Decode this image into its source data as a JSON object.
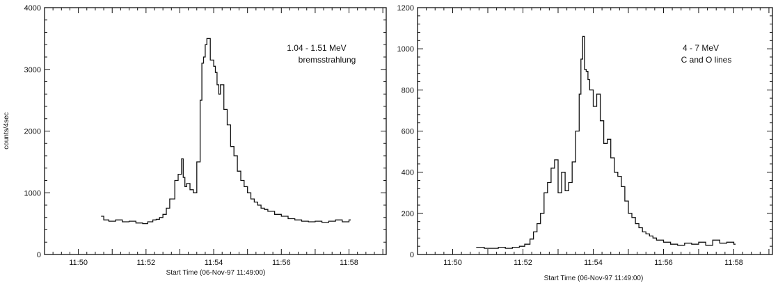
{
  "chart_data": [
    {
      "type": "line",
      "step": true,
      "annotation": [
        "1.04 - 1.51 MeV",
        "bremsstrahlung"
      ],
      "xlabel": "Start Time (06-Nov-97 11:49:00)",
      "ylabel": "counts/4sec",
      "x_ticks": [
        {
          "value": 1,
          "label": "11:50"
        },
        {
          "value": 3,
          "label": "11:52"
        },
        {
          "value": 5,
          "label": "11:54"
        },
        {
          "value": 7,
          "label": "11:56"
        },
        {
          "value": 9,
          "label": "11:58"
        }
      ],
      "y_ticks": [
        0,
        1000,
        2000,
        3000,
        4000
      ],
      "xlim": [
        0,
        10.1
      ],
      "ylim": [
        0,
        4000
      ],
      "series": [
        {
          "x": [
            1.67,
            1.75,
            1.9,
            2.1,
            2.3,
            2.5,
            2.7,
            2.9,
            3.05,
            3.2,
            3.3,
            3.4,
            3.5,
            3.6,
            3.7,
            3.85,
            3.95,
            4.05,
            4.1,
            4.15,
            4.2,
            4.3,
            4.4,
            4.5,
            4.6,
            4.65,
            4.7,
            4.75,
            4.8,
            4.9,
            5.0,
            5.05,
            5.1,
            5.15,
            5.2,
            5.3,
            5.4,
            5.5,
            5.6,
            5.7,
            5.8,
            5.9,
            6.0,
            6.1,
            6.2,
            6.3,
            6.4,
            6.5,
            6.6,
            6.8,
            7.0,
            7.2,
            7.4,
            7.6,
            7.8,
            8.0,
            8.2,
            8.4,
            8.6,
            8.8,
            9.0
          ],
          "y": [
            620,
            560,
            540,
            560,
            530,
            540,
            510,
            500,
            530,
            560,
            570,
            600,
            650,
            750,
            900,
            1200,
            1300,
            1550,
            1250,
            1100,
            1150,
            1050,
            1000,
            1500,
            2500,
            3100,
            3200,
            3400,
            3500,
            3150,
            3050,
            2950,
            2750,
            2600,
            2750,
            2350,
            2100,
            1750,
            1600,
            1350,
            1200,
            1100,
            1000,
            900,
            850,
            800,
            750,
            730,
            700,
            650,
            620,
            580,
            560,
            540,
            530,
            540,
            520,
            540,
            560,
            530,
            560
          ]
        }
      ]
    },
    {
      "type": "line",
      "step": true,
      "annotation": [
        "4 - 7 MeV",
        "C and O lines"
      ],
      "xlabel": "Start Time (06-Nov-97 11:49:00)",
      "ylabel": "",
      "x_ticks": [
        {
          "value": 1,
          "label": "11:50"
        },
        {
          "value": 3,
          "label": "11:52"
        },
        {
          "value": 5,
          "label": "11:54"
        },
        {
          "value": 7,
          "label": "11:56"
        },
        {
          "value": 9,
          "label": "11:58"
        }
      ],
      "y_ticks": [
        0,
        200,
        400,
        600,
        800,
        1000,
        1200
      ],
      "xlim": [
        0,
        10.1
      ],
      "ylim": [
        0,
        1200
      ],
      "series": [
        {
          "x": [
            1.67,
            1.9,
            2.1,
            2.3,
            2.5,
            2.7,
            2.9,
            3.05,
            3.2,
            3.3,
            3.4,
            3.5,
            3.6,
            3.7,
            3.8,
            3.9,
            4.0,
            4.1,
            4.2,
            4.3,
            4.4,
            4.5,
            4.6,
            4.65,
            4.7,
            4.75,
            4.8,
            4.85,
            4.9,
            5.0,
            5.1,
            5.2,
            5.3,
            5.4,
            5.5,
            5.6,
            5.7,
            5.8,
            5.9,
            6.0,
            6.1,
            6.2,
            6.3,
            6.4,
            6.5,
            6.6,
            6.7,
            6.8,
            7.0,
            7.2,
            7.4,
            7.6,
            7.8,
            8.0,
            8.2,
            8.4,
            8.6,
            8.8,
            9.0
          ],
          "y": [
            35,
            30,
            30,
            35,
            30,
            35,
            40,
            50,
            75,
            110,
            150,
            200,
            300,
            350,
            420,
            460,
            300,
            400,
            310,
            350,
            450,
            600,
            780,
            950,
            1060,
            900,
            890,
            850,
            800,
            720,
            780,
            650,
            540,
            560,
            470,
            400,
            380,
            330,
            260,
            200,
            180,
            150,
            130,
            110,
            100,
            90,
            80,
            70,
            60,
            50,
            45,
            55,
            50,
            60,
            45,
            70,
            55,
            60,
            50
          ]
        }
      ]
    }
  ]
}
